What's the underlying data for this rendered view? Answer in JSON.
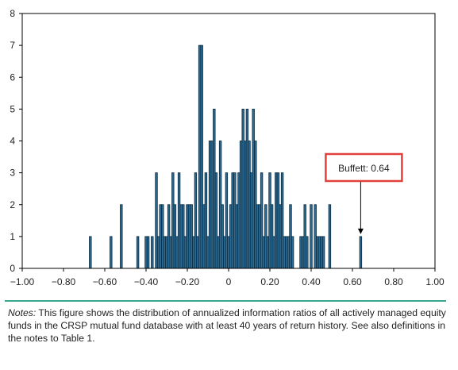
{
  "chart_data": {
    "type": "bar",
    "title": "",
    "xlabel": "",
    "ylabel": "",
    "xlim": [
      -1.0,
      1.0
    ],
    "ylim": [
      0,
      8
    ],
    "x_ticks": [
      -1.0,
      -0.8,
      -0.6,
      -0.4,
      -0.2,
      0.0,
      0.2,
      0.4,
      0.6,
      0.8,
      1.0
    ],
    "x_tick_labels": [
      "−1.00",
      "−0.80",
      "−0.60",
      "−0.40",
      "−0.20",
      "0",
      "0.20",
      "0.40",
      "0.60",
      "0.80",
      "1.00"
    ],
    "y_ticks": [
      0,
      1,
      2,
      3,
      4,
      5,
      6,
      7,
      8
    ],
    "y_tick_labels": [
      "0",
      "1",
      "2",
      "3",
      "4",
      "5",
      "6",
      "7",
      "8"
    ],
    "bin_width": 0.01,
    "x": [
      -0.67,
      -0.57,
      -0.52,
      -0.44,
      -0.4,
      -0.39,
      -0.37,
      -0.35,
      -0.34,
      -0.33,
      -0.32,
      -0.31,
      -0.3,
      -0.29,
      -0.28,
      -0.27,
      -0.26,
      -0.25,
      -0.24,
      -0.23,
      -0.22,
      -0.21,
      -0.2,
      -0.19,
      -0.18,
      -0.17,
      -0.16,
      -0.15,
      -0.14,
      -0.13,
      -0.12,
      -0.11,
      -0.1,
      -0.09,
      -0.08,
      -0.07,
      -0.06,
      -0.05,
      -0.04,
      -0.03,
      -0.02,
      -0.01,
      0.0,
      0.01,
      0.02,
      0.03,
      0.04,
      0.05,
      0.06,
      0.07,
      0.08,
      0.09,
      0.1,
      0.11,
      0.12,
      0.13,
      0.14,
      0.15,
      0.16,
      0.17,
      0.18,
      0.19,
      0.2,
      0.21,
      0.22,
      0.23,
      0.24,
      0.25,
      0.26,
      0.27,
      0.28,
      0.29,
      0.3,
      0.31,
      0.35,
      0.36,
      0.37,
      0.38,
      0.4,
      0.42,
      0.43,
      0.44,
      0.45,
      0.46,
      0.49,
      0.64
    ],
    "values": [
      1,
      1,
      2,
      1,
      1,
      1,
      1,
      3,
      1,
      2,
      2,
      1,
      1,
      2,
      1,
      3,
      2,
      1,
      3,
      2,
      2,
      1,
      2,
      2,
      2,
      1,
      3,
      1,
      7,
      7,
      2,
      3,
      1,
      4,
      4,
      5,
      3,
      1,
      4,
      2,
      1,
      3,
      1,
      2,
      3,
      3,
      2,
      3,
      4,
      5,
      4,
      5,
      4,
      3,
      5,
      4,
      2,
      2,
      3,
      1,
      2,
      1,
      3,
      2,
      1,
      3,
      3,
      2,
      3,
      1,
      1,
      1,
      2,
      1,
      1,
      1,
      2,
      1,
      2,
      2,
      1,
      1,
      1,
      1,
      2,
      1
    ],
    "grid": false,
    "annotation": {
      "text": "Buffett: 0.64",
      "x": 0.64,
      "y": 1
    }
  },
  "notes": {
    "label": "Notes:",
    "text": " This figure shows the distribution of annualized information ratios of all actively managed equity funds in the CRSP mutual fund database with at least 40 years of return history. See also definitions in the notes to Table 1."
  },
  "colors": {
    "bar_fill": "#2b6b94",
    "bar_edge": "#0d2a3d",
    "callout_border": "#e0413a",
    "rule": "#3aa88f"
  }
}
